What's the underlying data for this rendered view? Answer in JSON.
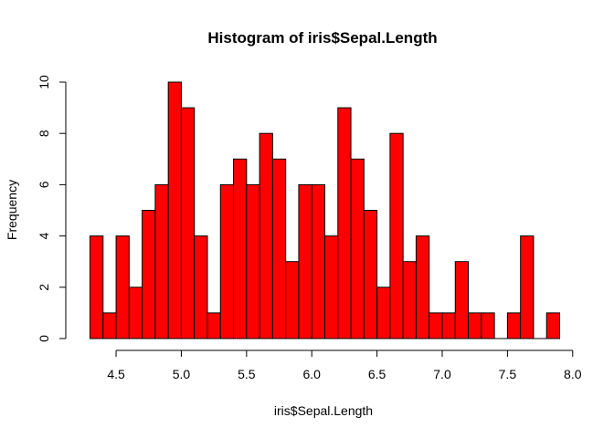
{
  "chart_data": {
    "type": "bar",
    "subtype": "histogram",
    "title": "Histogram of iris$Sepal.Length",
    "xlabel": "iris$Sepal.Length",
    "ylabel": "Frequency",
    "bar_color": "#ff0000",
    "border_color": "#000000",
    "bin_width": 0.1,
    "bin_start": 4.3,
    "values": [
      4,
      1,
      4,
      2,
      5,
      6,
      10,
      9,
      4,
      1,
      6,
      7,
      6,
      8,
      7,
      3,
      6,
      6,
      4,
      9,
      7,
      5,
      2,
      8,
      3,
      4,
      1,
      1,
      3,
      1,
      1,
      0,
      1,
      4,
      0,
      1
    ],
    "xlim": [
      4.3,
      7.9
    ],
    "ylim": [
      0,
      10
    ],
    "x_ticks": [
      "4.5",
      "5.0",
      "5.5",
      "6.0",
      "6.5",
      "7.0",
      "7.5",
      "8.0"
    ],
    "y_ticks": [
      "0",
      "2",
      "4",
      "6",
      "8",
      "10"
    ],
    "grid": false
  }
}
